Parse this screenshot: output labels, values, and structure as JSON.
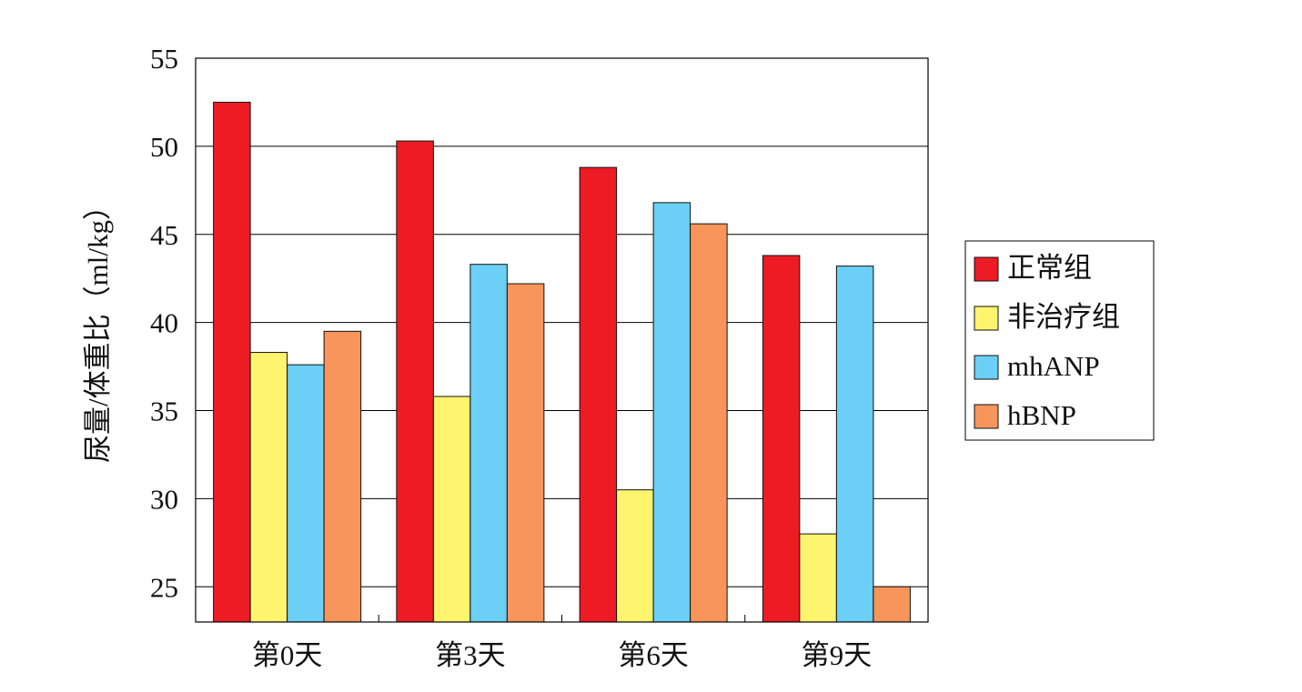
{
  "chart_data": {
    "type": "bar",
    "title": "",
    "xlabel": "",
    "ylabel": "尿量/体重比（ml/kg）",
    "categories": [
      "第0天",
      "第3天",
      "第6天",
      "第9天"
    ],
    "yticks": [
      25,
      30,
      35,
      40,
      45,
      50,
      55
    ],
    "ylim": [
      23,
      55
    ],
    "grid": true,
    "legend_position": "right",
    "series": [
      {
        "name": "正常组",
        "color": "#ed1c24",
        "values": [
          52.5,
          50.3,
          48.8,
          43.8
        ]
      },
      {
        "name": "非治疗组",
        "color": "#fff46e",
        "values": [
          38.3,
          35.8,
          30.5,
          28.0
        ]
      },
      {
        "name": "mhANP",
        "color": "#6bcff6",
        "values": [
          37.6,
          43.3,
          46.8,
          43.2
        ]
      },
      {
        "name": "hBNP",
        "color": "#f7955b",
        "values": [
          39.5,
          42.2,
          45.6,
          25.0
        ]
      }
    ]
  }
}
